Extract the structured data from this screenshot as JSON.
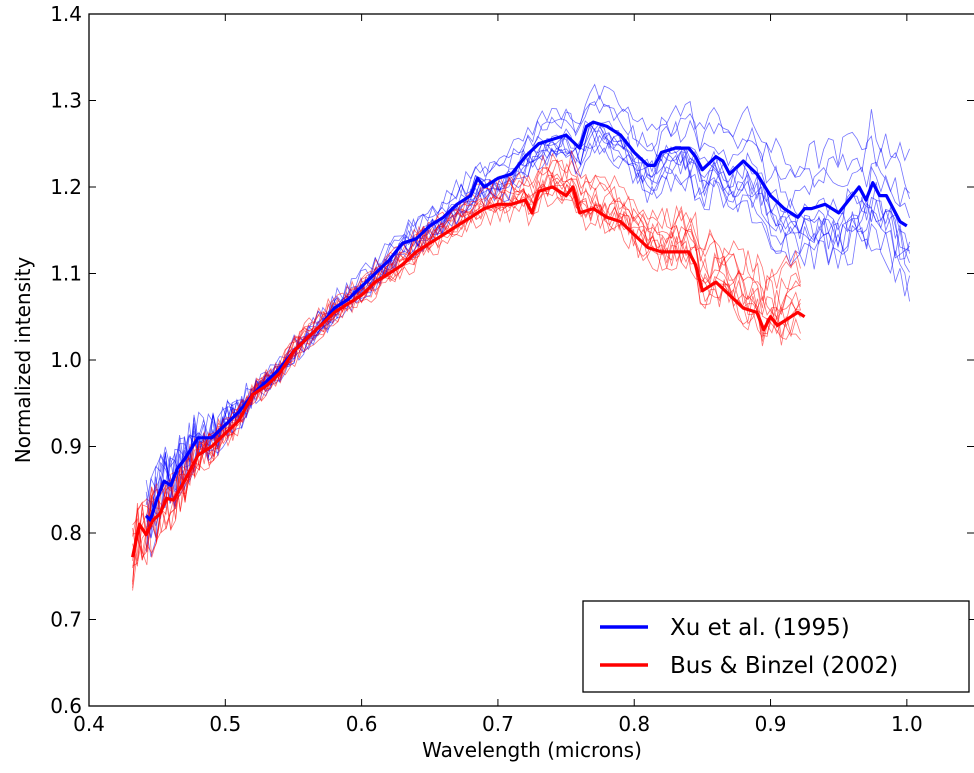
{
  "chart_data": {
    "type": "line",
    "title": "",
    "xlabel": "Wavelength (microns)",
    "ylabel": "Normalized intensity",
    "xlim": [
      0.4,
      1.05
    ],
    "ylim": [
      0.6,
      1.4
    ],
    "grid": false,
    "legend_position": "bottom-right",
    "x_ticks": [
      0.4,
      0.5,
      0.6,
      0.7,
      0.8,
      0.9,
      1.0
    ],
    "x_tick_labels": [
      "0.4",
      "0.5",
      "0.6",
      "0.7",
      "0.8",
      "0.9",
      "1.0"
    ],
    "y_ticks": [
      0.6,
      0.7,
      0.8,
      0.9,
      1.0,
      1.1,
      1.2,
      1.3,
      1.4
    ],
    "y_tick_labels": [
      "0.6",
      "0.7",
      "0.8",
      "0.9",
      "1.0",
      "1.1",
      "1.2",
      "1.3",
      "1.4"
    ],
    "series": [
      {
        "name": "Xu et al. (1995)",
        "color": "#0000ff",
        "x": [
          0.442,
          0.445,
          0.45,
          0.455,
          0.46,
          0.465,
          0.47,
          0.48,
          0.49,
          0.5,
          0.51,
          0.52,
          0.53,
          0.54,
          0.55,
          0.56,
          0.57,
          0.58,
          0.59,
          0.6,
          0.61,
          0.62,
          0.63,
          0.64,
          0.65,
          0.66,
          0.67,
          0.68,
          0.685,
          0.69,
          0.7,
          0.71,
          0.72,
          0.73,
          0.74,
          0.75,
          0.76,
          0.765,
          0.77,
          0.78,
          0.79,
          0.8,
          0.81,
          0.815,
          0.82,
          0.83,
          0.84,
          0.845,
          0.85,
          0.86,
          0.865,
          0.87,
          0.88,
          0.89,
          0.9,
          0.91,
          0.92,
          0.925,
          0.93,
          0.94,
          0.95,
          0.96,
          0.965,
          0.97,
          0.975,
          0.98,
          0.985,
          0.99,
          0.995,
          1.0
        ],
        "values": [
          0.82,
          0.815,
          0.84,
          0.86,
          0.855,
          0.875,
          0.885,
          0.91,
          0.91,
          0.925,
          0.94,
          0.96,
          0.975,
          0.99,
          1.01,
          1.025,
          1.04,
          1.06,
          1.07,
          1.085,
          1.1,
          1.115,
          1.135,
          1.14,
          1.155,
          1.165,
          1.18,
          1.19,
          1.21,
          1.2,
          1.21,
          1.215,
          1.235,
          1.25,
          1.255,
          1.26,
          1.245,
          1.27,
          1.275,
          1.27,
          1.26,
          1.24,
          1.225,
          1.225,
          1.24,
          1.245,
          1.245,
          1.235,
          1.22,
          1.235,
          1.23,
          1.215,
          1.23,
          1.215,
          1.19,
          1.175,
          1.165,
          1.175,
          1.175,
          1.18,
          1.17,
          1.19,
          1.2,
          1.185,
          1.205,
          1.19,
          1.19,
          1.175,
          1.16,
          1.155
        ]
      },
      {
        "name": "Bus & Binzel (2002)",
        "color": "#ff0000",
        "x": [
          0.432,
          0.437,
          0.442,
          0.447,
          0.452,
          0.457,
          0.462,
          0.47,
          0.48,
          0.49,
          0.5,
          0.51,
          0.52,
          0.53,
          0.54,
          0.55,
          0.56,
          0.57,
          0.58,
          0.59,
          0.6,
          0.61,
          0.62,
          0.63,
          0.64,
          0.65,
          0.66,
          0.67,
          0.68,
          0.69,
          0.7,
          0.71,
          0.72,
          0.725,
          0.73,
          0.74,
          0.75,
          0.755,
          0.76,
          0.77,
          0.78,
          0.79,
          0.8,
          0.81,
          0.82,
          0.83,
          0.84,
          0.845,
          0.85,
          0.86,
          0.87,
          0.88,
          0.89,
          0.895,
          0.9,
          0.905,
          0.91,
          0.915,
          0.92,
          0.925
        ],
        "values": [
          0.772,
          0.81,
          0.798,
          0.815,
          0.822,
          0.84,
          0.838,
          0.86,
          0.89,
          0.9,
          0.915,
          0.93,
          0.96,
          0.97,
          0.985,
          1.01,
          1.025,
          1.04,
          1.055,
          1.065,
          1.075,
          1.09,
          1.1,
          1.11,
          1.125,
          1.135,
          1.145,
          1.155,
          1.165,
          1.175,
          1.18,
          1.18,
          1.185,
          1.17,
          1.195,
          1.2,
          1.19,
          1.2,
          1.17,
          1.175,
          1.165,
          1.16,
          1.145,
          1.13,
          1.125,
          1.125,
          1.125,
          1.11,
          1.08,
          1.09,
          1.075,
          1.06,
          1.055,
          1.035,
          1.05,
          1.04,
          1.045,
          1.05,
          1.055,
          1.05
        ]
      }
    ],
    "individual_spectra_note": ""
  }
}
